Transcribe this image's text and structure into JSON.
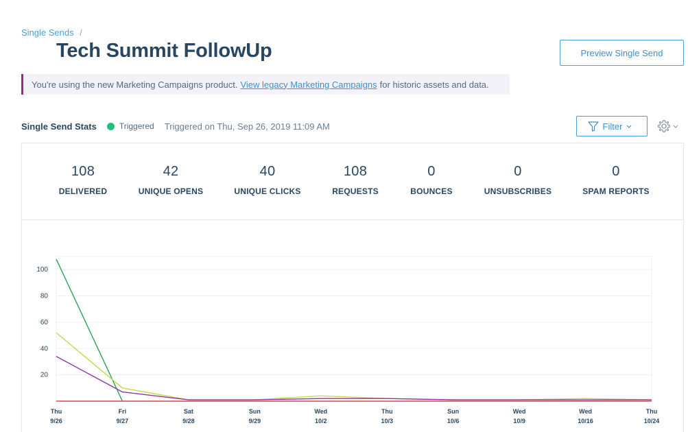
{
  "breadcrumb": {
    "parent": "Single Sends",
    "separator": "/"
  },
  "page": {
    "title": "Tech Summit FollowUp"
  },
  "actions": {
    "preview_label": "Preview Single Send"
  },
  "notice": {
    "before": "You're using the new Marketing Campaigns product.",
    "link": "View legacy Marketing Campaigns",
    "after": "for historic assets and data."
  },
  "stats_header": {
    "label": "Single Send Stats",
    "status": "Triggered",
    "status_color": "#1fc178",
    "triggered_on": "Triggered on Thu, Sep 26, 2019 11:09 AM",
    "filter_label": "Filter",
    "settings_icon": "gear-icon"
  },
  "metrics": [
    {
      "value": "108",
      "label": "DELIVERED"
    },
    {
      "value": "42",
      "label": "UNIQUE OPENS"
    },
    {
      "value": "40",
      "label": "UNIQUE CLICKS"
    },
    {
      "value": "108",
      "label": "REQUESTS"
    },
    {
      "value": "0",
      "label": "BOUNCES"
    },
    {
      "value": "0",
      "label": "UNSUBSCRIBES"
    },
    {
      "value": "0",
      "label": "SPAM REPORTS"
    }
  ],
  "chart_data": {
    "type": "line",
    "x": [
      [
        "Thu",
        "9/26"
      ],
      [
        "Fri",
        "9/27"
      ],
      [
        "Sat",
        "9/28"
      ],
      [
        "Sun",
        "9/29"
      ],
      [
        "Wed",
        "10/2"
      ],
      [
        "Thu",
        "10/3"
      ],
      [
        "Sun",
        "10/6"
      ],
      [
        "Wed",
        "10/9"
      ],
      [
        "Wed",
        "10/16"
      ],
      [
        "Thu",
        "10/24"
      ]
    ],
    "yticks": [
      100,
      80,
      60,
      40,
      20
    ],
    "ylim": [
      0,
      110
    ],
    "grid": true,
    "series": [
      {
        "color": "#23a455",
        "values": [
          108,
          0,
          null,
          null,
          null,
          null,
          null,
          null,
          null,
          null
        ]
      },
      {
        "color": "#c8d84a",
        "values": [
          52,
          10,
          1,
          1,
          4,
          2,
          1,
          1,
          2,
          1
        ]
      },
      {
        "color": "#8b35a8",
        "values": [
          34,
          7,
          1,
          1,
          2,
          2,
          1,
          1,
          1,
          1
        ]
      },
      {
        "color": "#e0405a",
        "values": [
          0,
          0,
          0,
          0,
          0,
          0,
          0,
          0,
          0,
          0
        ]
      }
    ]
  }
}
